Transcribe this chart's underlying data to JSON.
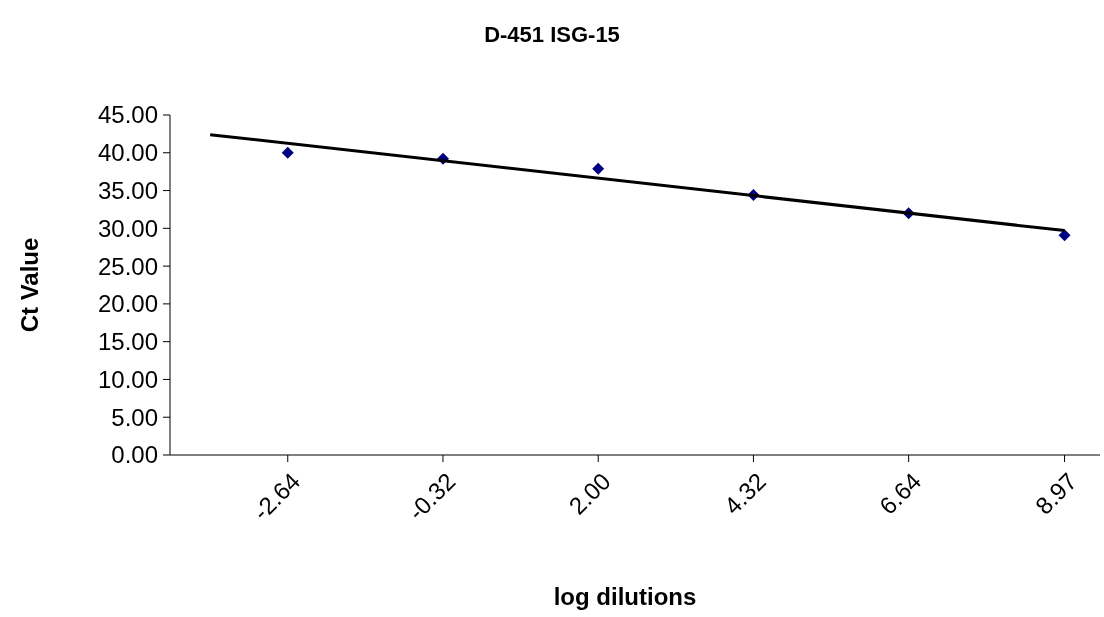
{
  "chart_data": {
    "type": "scatter",
    "title": "D-451 ISG-15",
    "xlabel": "log dilutions",
    "ylabel": "Ct Value",
    "marker": "diamond",
    "x": [
      -2.64,
      -0.32,
      2.0,
      4.32,
      6.64,
      8.97
    ],
    "xlim": [
      -4.4,
      9.5
    ],
    "xticks": [
      {
        "value": -2.64,
        "label": "-2.64"
      },
      {
        "value": -0.32,
        "label": "-0.32"
      },
      {
        "value": 2.0,
        "label": "2.00"
      },
      {
        "value": 4.32,
        "label": "4.32"
      },
      {
        "value": 6.64,
        "label": "6.64"
      },
      {
        "value": 8.97,
        "label": "8.97"
      }
    ],
    "ylim": [
      0,
      45
    ],
    "yticks": [
      {
        "value": 0,
        "label": "0.00"
      },
      {
        "value": 5,
        "label": "5.00"
      },
      {
        "value": 10,
        "label": "10.00"
      },
      {
        "value": 15,
        "label": "15.00"
      },
      {
        "value": 20,
        "label": "20.00"
      },
      {
        "value": 25,
        "label": "25.00"
      },
      {
        "value": 30,
        "label": "30.00"
      },
      {
        "value": 35,
        "label": "35.00"
      },
      {
        "value": 40,
        "label": "40.00"
      },
      {
        "value": 45,
        "label": "45.00"
      }
    ],
    "series": [
      {
        "color": "#000080",
        "values": [
          40.0,
          39.2,
          37.9,
          34.4,
          32.0,
          29.1
        ]
      },
      {
        "type": "line",
        "color": "#000000",
        "x": [
          -3.8,
          8.97
        ],
        "values": [
          42.4,
          29.7
        ],
        "marker": "none"
      }
    ]
  }
}
